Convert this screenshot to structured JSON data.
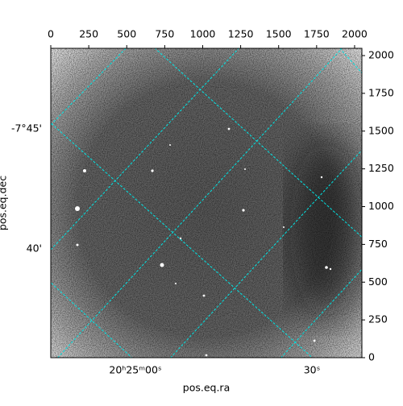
{
  "chart_data": {
    "type": "image",
    "xlabel": "pos.eq.ra",
    "ylabel": "pos.eq.dec",
    "xlim": [
      0,
      2048
    ],
    "ylim": [
      0,
      2048
    ],
    "xticks": [
      0,
      250,
      500,
      750,
      1000,
      1250,
      1500,
      1750,
      2000
    ],
    "yticks": [
      0,
      250,
      500,
      750,
      1000,
      1250,
      1500,
      1750,
      2000
    ],
    "world_xtick_labels": [
      "20ʰ25ᵐ00ˢ",
      "30ˢ"
    ],
    "world_ytick_labels": [
      "-7°45'",
      "40'"
    ],
    "grid_color": "#00e5e5"
  }
}
